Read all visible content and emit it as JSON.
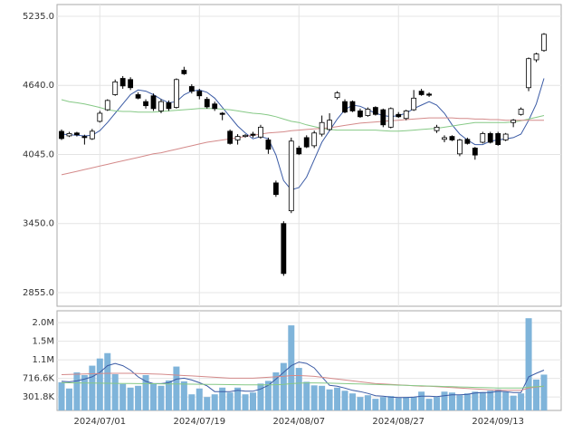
{
  "chart_data": [
    {
      "type": "candlestick",
      "open": [
        4244,
        4205,
        4230,
        4200,
        4180,
        4330,
        4430,
        4560,
        4700,
        4690,
        4560,
        4500,
        4550,
        4420,
        4490,
        4450,
        4770,
        4630,
        4590,
        4520,
        4480,
        4400,
        4245,
        4170,
        4200,
        4220,
        4195,
        4170,
        3800,
        3450,
        3560,
        4100,
        4190,
        4120,
        4220,
        4260,
        4535,
        4500,
        4500,
        4420,
        4380,
        4450,
        4430,
        4280,
        4390,
        4355,
        4430,
        4590,
        4565,
        4250,
        4175,
        4200,
        4050,
        4175,
        4100,
        4150,
        4225,
        4225,
        4170,
        4320,
        4390,
        4620,
        4860,
        4940
      ],
      "high": [
        4260,
        4240,
        4240,
        4215,
        4265,
        4420,
        4520,
        4690,
        4720,
        4710,
        4580,
        4520,
        4570,
        4520,
        4510,
        4700,
        4800,
        4650,
        4610,
        4540,
        4500,
        4410,
        4260,
        4220,
        4220,
        4240,
        4300,
        4190,
        3820,
        3470,
        4190,
        4120,
        4210,
        4250,
        4380,
        4400,
        4590,
        4520,
        4510,
        4440,
        4450,
        4460,
        4440,
        4450,
        4410,
        4430,
        4600,
        4610,
        4580,
        4300,
        4210,
        4210,
        4180,
        4190,
        4110,
        4240,
        4240,
        4240,
        4230,
        4350,
        4450,
        4880,
        4920,
        5090
      ],
      "low": [
        4170,
        4195,
        4200,
        4130,
        4170,
        4320,
        4420,
        4550,
        4610,
        4600,
        4520,
        4440,
        4420,
        4400,
        4420,
        4440,
        4730,
        4570,
        4520,
        4440,
        4420,
        4340,
        4130,
        4130,
        4190,
        4190,
        4180,
        4050,
        3680,
        3000,
        3540,
        4040,
        4100,
        4100,
        4200,
        4250,
        4520,
        4400,
        4410,
        4360,
        4370,
        4380,
        4280,
        4270,
        4360,
        4340,
        4420,
        4550,
        4540,
        4230,
        4150,
        4160,
        4030,
        4130,
        4000,
        4140,
        4140,
        4120,
        4160,
        4280,
        4380,
        4590,
        4840,
        4930
      ],
      "close": [
        4182,
        4225,
        4215,
        4190,
        4245,
        4400,
        4510,
        4670,
        4635,
        4620,
        4530,
        4465,
        4440,
        4500,
        4440,
        4690,
        4740,
        4590,
        4550,
        4455,
        4440,
        4390,
        4140,
        4200,
        4210,
        4210,
        4280,
        4090,
        3700,
        3020,
        4160,
        4050,
        4110,
        4230,
        4320,
        4340,
        4575,
        4410,
        4420,
        4370,
        4435,
        4390,
        4300,
        4440,
        4370,
        4420,
        4530,
        4560,
        4555,
        4280,
        4190,
        4170,
        4170,
        4140,
        4040,
        4225,
        4150,
        4130,
        4220,
        4340,
        4435,
        4870,
        4910,
        5080
      ],
      "up_color": "#ffffff",
      "down_color": "#000000",
      "lines": [
        {
          "color": "#3b5ba5",
          "values": [
            4220,
            4215,
            4210,
            4205,
            4210,
            4250,
            4320,
            4400,
            4480,
            4560,
            4600,
            4590,
            4560,
            4520,
            4490,
            4500,
            4560,
            4590,
            4600,
            4580,
            4530,
            4450,
            4370,
            4290,
            4230,
            4180,
            4200,
            4180,
            4040,
            3820,
            3740,
            3760,
            3850,
            4000,
            4150,
            4250,
            4350,
            4430,
            4470,
            4460,
            4430,
            4400,
            4380,
            4370,
            4380,
            4400,
            4440,
            4470,
            4500,
            4470,
            4400,
            4300,
            4220,
            4170,
            4130,
            4130,
            4160,
            4170,
            4180,
            4190,
            4220,
            4340,
            4480,
            4700
          ]
        },
        {
          "color": "#86c986",
          "values": [
            4517,
            4500,
            4490,
            4480,
            4465,
            4450,
            4430,
            4420,
            4415,
            4415,
            4410,
            4410,
            4410,
            4415,
            4420,
            4425,
            4430,
            4435,
            4440,
            4440,
            4440,
            4435,
            4430,
            4420,
            4410,
            4400,
            4395,
            4385,
            4370,
            4350,
            4330,
            4320,
            4300,
            4285,
            4270,
            4260,
            4255,
            4255,
            4255,
            4255,
            4255,
            4255,
            4250,
            4245,
            4245,
            4250,
            4255,
            4260,
            4265,
            4270,
            4280,
            4290,
            4300,
            4310,
            4320,
            4320,
            4320,
            4320,
            4320,
            4325,
            4335,
            4350,
            4365,
            4380
          ]
        },
        {
          "color": "#d48a8a",
          "values": [
            3870,
            3885,
            3900,
            3915,
            3930,
            3945,
            3960,
            3975,
            3990,
            4005,
            4020,
            4035,
            4050,
            4060,
            4075,
            4090,
            4105,
            4120,
            4135,
            4150,
            4160,
            4170,
            4180,
            4190,
            4200,
            4210,
            4220,
            4230,
            4235,
            4240,
            4250,
            4255,
            4260,
            4265,
            4270,
            4275,
            4285,
            4295,
            4305,
            4315,
            4320,
            4325,
            4330,
            4335,
            4340,
            4345,
            4350,
            4355,
            4360,
            4360,
            4360,
            4360,
            4355,
            4355,
            4350,
            4350,
            4345,
            4345,
            4340,
            4340,
            4340,
            4340,
            4340,
            4340
          ]
        }
      ],
      "ylim": [
        2738,
        5336
      ],
      "yticks": [
        {
          "value": 2855,
          "label": "2855.0"
        },
        {
          "value": 3450,
          "label": "3450.0"
        },
        {
          "value": 4045,
          "label": "4045.0"
        },
        {
          "value": 4640,
          "label": "4640.0"
        },
        {
          "value": 5235,
          "label": "5235.0"
        }
      ],
      "grid": true
    },
    {
      "type": "bar",
      "categories": [
        null,
        null,
        null,
        null,
        null,
        "2024/07/01",
        null,
        null,
        null,
        null,
        null,
        null,
        null,
        null,
        null,
        null,
        null,
        null,
        "2024/07/19",
        null,
        null,
        null,
        null,
        null,
        null,
        null,
        null,
        null,
        null,
        null,
        null,
        "2024/08/07",
        null,
        null,
        null,
        null,
        null,
        null,
        null,
        null,
        null,
        null,
        null,
        null,
        "2024/08/27",
        null,
        null,
        null,
        null,
        null,
        null,
        null,
        null,
        null,
        null,
        null,
        null,
        "2024/09/13",
        null,
        null,
        null,
        null,
        null,
        null
      ],
      "values": [
        630000,
        490000,
        850000,
        790000,
        1000000,
        1160000,
        1280000,
        810000,
        590000,
        510000,
        550000,
        790000,
        590000,
        550000,
        670000,
        980000,
        650000,
        360000,
        490000,
        300000,
        360000,
        510000,
        400000,
        510000,
        360000,
        400000,
        600000,
        660000,
        850000,
        1060000,
        1900000,
        950000,
        640000,
        560000,
        550000,
        470000,
        510000,
        440000,
        380000,
        300000,
        340000,
        260000,
        300000,
        320000,
        280000,
        300000,
        300000,
        420000,
        260000,
        300000,
        420000,
        400000,
        340000,
        380000,
        420000,
        410000,
        440000,
        470000,
        410000,
        330000,
        380000,
        2060000,
        690000,
        800000
      ],
      "color": "#7fb4da",
      "lines": [
        {
          "color": "#3b5ba5",
          "values": [
            650000,
            640000,
            660000,
            700000,
            750000,
            850000,
            1000000,
            1050000,
            1000000,
            900000,
            750000,
            650000,
            600000,
            600000,
            620000,
            700000,
            720000,
            680000,
            620000,
            550000,
            420000,
            420000,
            420000,
            450000,
            430000,
            430000,
            480000,
            560000,
            700000,
            850000,
            1000000,
            1080000,
            1050000,
            950000,
            750000,
            560000,
            540000,
            500000,
            450000,
            420000,
            380000,
            330000,
            320000,
            300000,
            290000,
            290000,
            300000,
            320000,
            320000,
            310000,
            330000,
            350000,
            350000,
            360000,
            390000,
            400000,
            400000,
            430000,
            420000,
            400000,
            400000,
            750000,
            830000,
            900000
          ]
        },
        {
          "color": "#d48a8a",
          "values": [
            800000,
            805000,
            810000,
            815000,
            820000,
            825000,
            830000,
            830000,
            830000,
            830000,
            825000,
            820000,
            815000,
            810000,
            800000,
            790000,
            780000,
            770000,
            760000,
            750000,
            740000,
            730000,
            720000,
            720000,
            720000,
            720000,
            730000,
            740000,
            750000,
            760000,
            780000,
            780000,
            770000,
            760000,
            740000,
            720000,
            700000,
            680000,
            660000,
            640000,
            620000,
            600000,
            590000,
            580000,
            570000,
            560000,
            550000,
            540000,
            540000,
            530000,
            520000,
            510000,
            500000,
            490000,
            480000,
            470000,
            460000,
            450000,
            450000,
            450000,
            450000,
            500000,
            520000,
            540000
          ]
        },
        {
          "color": "#86c986",
          "values": [
            620000,
            618000,
            616000,
            614000,
            612000,
            610000,
            608000,
            606000,
            604000,
            602000,
            600000,
            598000,
            596000,
            594000,
            592000,
            590000,
            588000,
            586000,
            584000,
            582000,
            580000,
            578000,
            576000,
            574000,
            572000,
            570000,
            570000,
            570000,
            575000,
            580000,
            600000,
            610000,
            615000,
            615000,
            612000,
            610000,
            605000,
            600000,
            595000,
            590000,
            585000,
            580000,
            575000,
            570000,
            565000,
            560000,
            555000,
            550000,
            545000,
            540000,
            535000,
            530000,
            525000,
            520000,
            515000,
            510000,
            505000,
            500000,
            500000,
            500000,
            500000,
            520000,
            530000,
            540000
          ]
        }
      ],
      "ylim": [
        0,
        2226000
      ],
      "yticks": [
        {
          "value": 301800,
          "label": "301.8K"
        },
        {
          "value": 716600,
          "label": "716.6K"
        },
        {
          "value": 1131400,
          "label": "1.1M"
        },
        {
          "value": 1546200,
          "label": "1.5M"
        },
        {
          "value": 1961000,
          "label": "2.0M"
        }
      ],
      "grid": true
    }
  ]
}
